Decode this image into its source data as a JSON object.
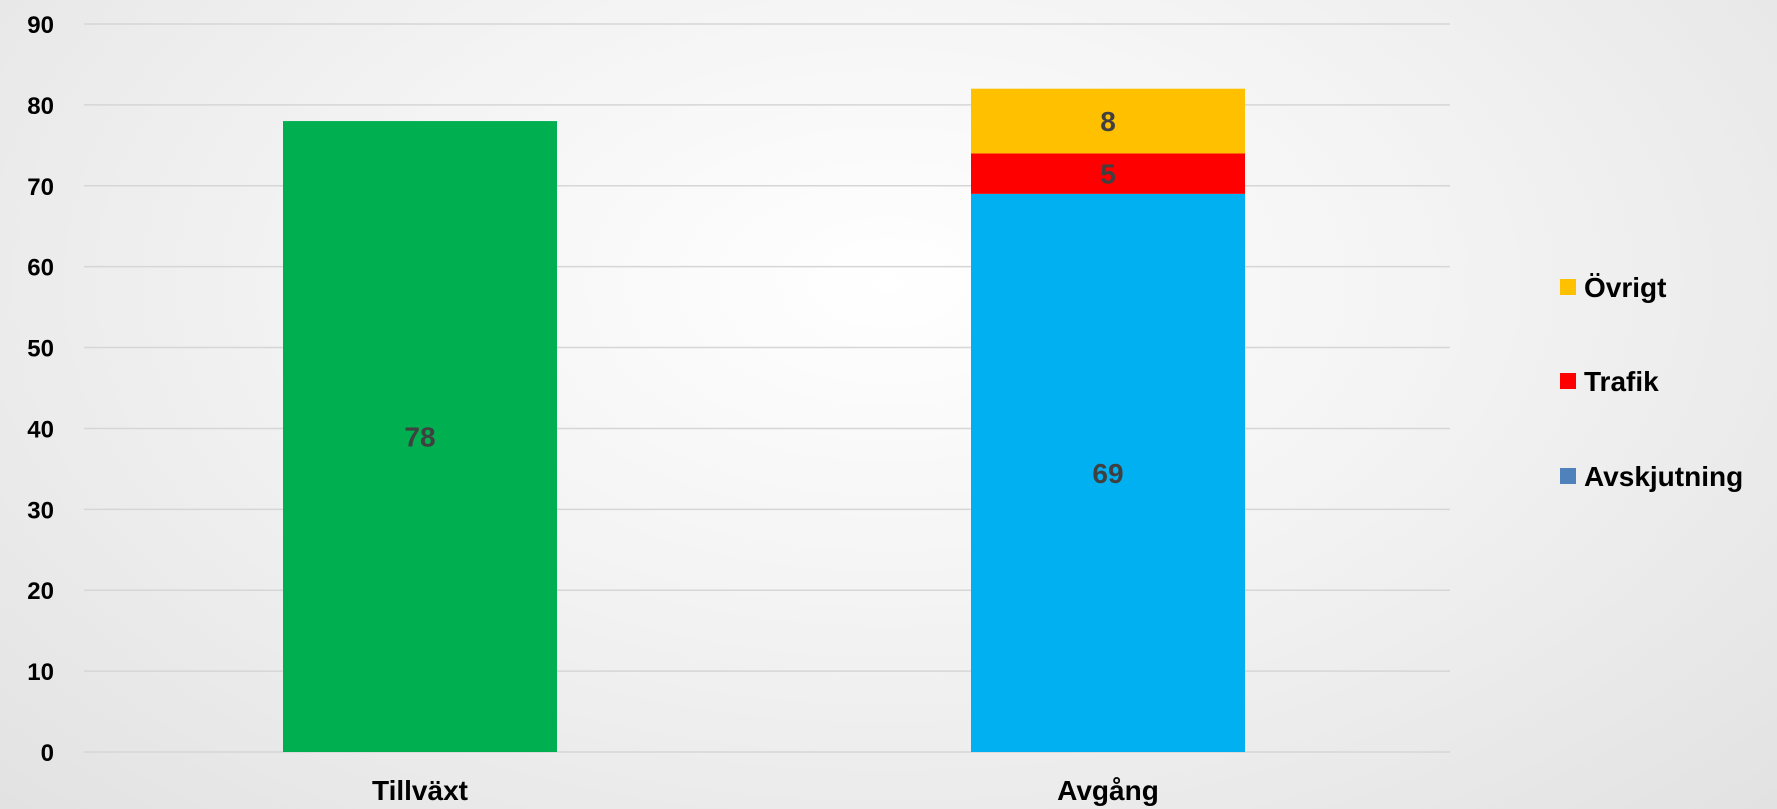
{
  "chart_data": {
    "type": "bar",
    "stacked": true,
    "categories": [
      "Tillväxt",
      "Avgång"
    ],
    "ylim": [
      0,
      90
    ],
    "yticks": [
      0,
      10,
      20,
      30,
      40,
      50,
      60,
      70,
      80,
      90
    ],
    "grid": true,
    "legend_position": "right",
    "title": "",
    "xlabel": "",
    "ylabel": "",
    "series": [
      {
        "name": "",
        "values": [
          78,
          null
        ],
        "color": "#00b050"
      },
      {
        "name": "Avskjutning",
        "values": [
          null,
          69
        ],
        "color": "#00b0f0",
        "legend_color": "#4f81bd"
      },
      {
        "name": "Trafik",
        "values": [
          null,
          5
        ],
        "color": "#ff0000",
        "legend_color": "#ff0000"
      },
      {
        "name": "Övrigt",
        "values": [
          null,
          8
        ],
        "color": "#ffc000",
        "legend_color": "#ffc000"
      }
    ],
    "legend": [
      "Övrigt",
      "Trafik",
      "Avskjutning"
    ]
  }
}
